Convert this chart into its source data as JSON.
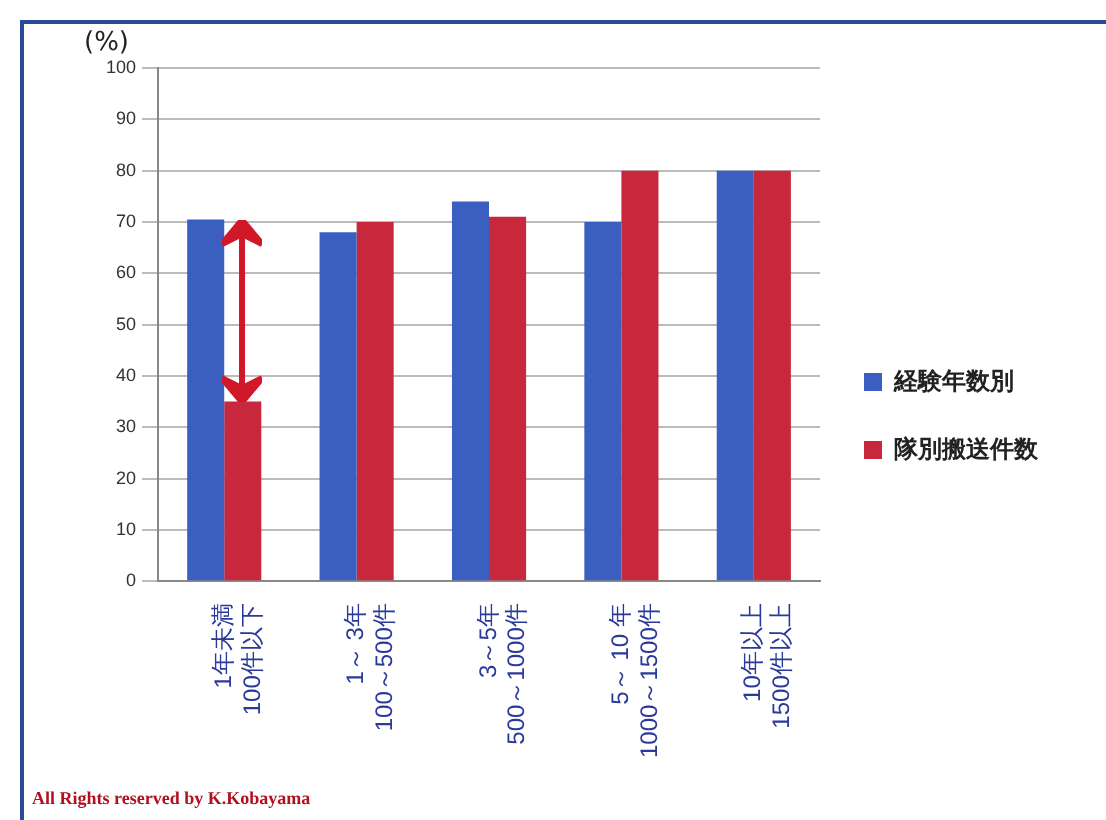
{
  "chart_data": {
    "type": "bar",
    "ylabel": "(%)",
    "categories": [
      "1年未満\n100件以下",
      "1～ 3年\n100～500件",
      "3～5年\n500～1000件",
      "5～ 10 年\n1000～1500件",
      "10年以上\n1500件以上"
    ],
    "series": [
      {
        "name": "経験年数別",
        "color": "#3b5fc0",
        "values": [
          70.5,
          68,
          74,
          70,
          80
        ]
      },
      {
        "name": "隊別搬送件数",
        "color": "#c8283c",
        "values": [
          35,
          70,
          71,
          80,
          80
        ]
      }
    ],
    "ylim": [
      0,
      100
    ],
    "yticks": [
      0,
      10,
      20,
      30,
      40,
      50,
      60,
      70,
      80,
      90,
      100
    ],
    "grid": "y",
    "legend": "right",
    "annotations": [
      "All Rights reserved by K.Kobayama"
    ]
  }
}
